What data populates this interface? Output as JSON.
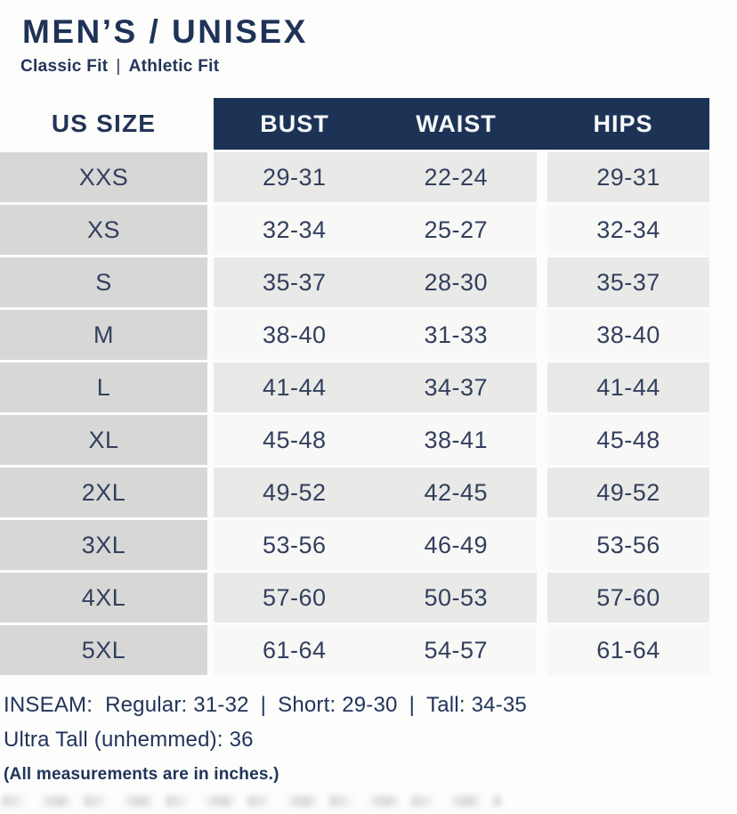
{
  "header": {
    "title": "MEN’S / UNISEX",
    "fits": [
      "Classic Fit",
      "Athletic Fit"
    ],
    "fit_separator": "|"
  },
  "table": {
    "size_column_header": "US SIZE",
    "measurement_headers": [
      "BUST",
      "WAIST",
      "HIPS"
    ],
    "rows": [
      {
        "size": "XXS",
        "bust": "29-31",
        "waist": "22-24",
        "hips": "29-31"
      },
      {
        "size": "XS",
        "bust": "32-34",
        "waist": "25-27",
        "hips": "32-34"
      },
      {
        "size": "S",
        "bust": "35-37",
        "waist": "28-30",
        "hips": "35-37"
      },
      {
        "size": "M",
        "bust": "38-40",
        "waist": "31-33",
        "hips": "38-40"
      },
      {
        "size": "L",
        "bust": "41-44",
        "waist": "34-37",
        "hips": "41-44"
      },
      {
        "size": "XL",
        "bust": "45-48",
        "waist": "38-41",
        "hips": "45-48"
      },
      {
        "size": "2XL",
        "bust": "49-52",
        "waist": "42-45",
        "hips": "49-52"
      },
      {
        "size": "3XL",
        "bust": "53-56",
        "waist": "46-49",
        "hips": "53-56"
      },
      {
        "size": "4XL",
        "bust": "57-60",
        "waist": "50-53",
        "hips": "57-60"
      },
      {
        "size": "5XL",
        "bust": "61-64",
        "waist": "54-57",
        "hips": "61-64"
      }
    ]
  },
  "footnotes": {
    "inseam_label": "INSEAM:",
    "inseam_options": [
      "Regular: 31-32",
      "Short: 29-30",
      "Tall: 34-35"
    ],
    "separator": "|",
    "ultra_tall": "Ultra Tall (unhemmed): 36",
    "units_note": "(All measurements are in inches.)"
  },
  "colors": {
    "header_bar_navy": "#1d3356",
    "navy_text": "#223459",
    "header_bar_text": "#f7f9fb",
    "size_column_bg": "#d7d8d6",
    "row_gray_bg": "#e9eae7",
    "row_white_bg": "#f8f8f6"
  }
}
